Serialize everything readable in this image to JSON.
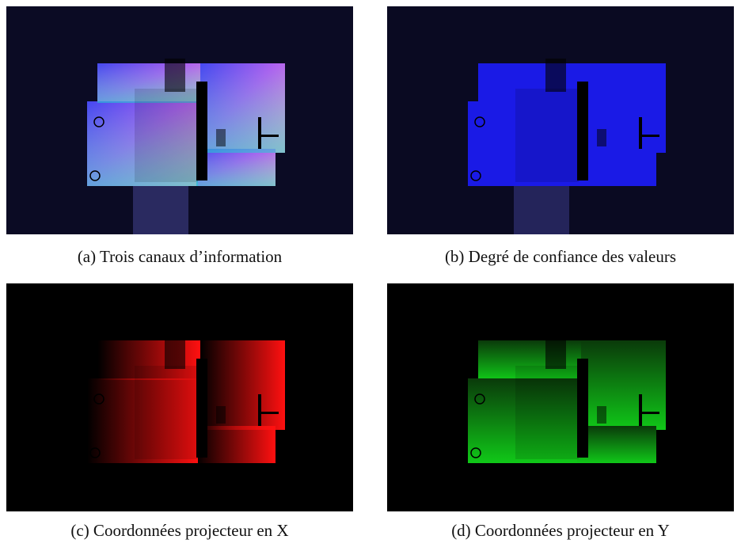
{
  "figure": {
    "subfigures": [
      {
        "caption": "(a) Trois canaux d’information"
      },
      {
        "caption": "(b) Degré de confiance des valeurs"
      },
      {
        "caption": "(c) Coordonnées projecteur en X"
      },
      {
        "caption": "(d) Coordonnées projecteur en Y"
      }
    ]
  }
}
